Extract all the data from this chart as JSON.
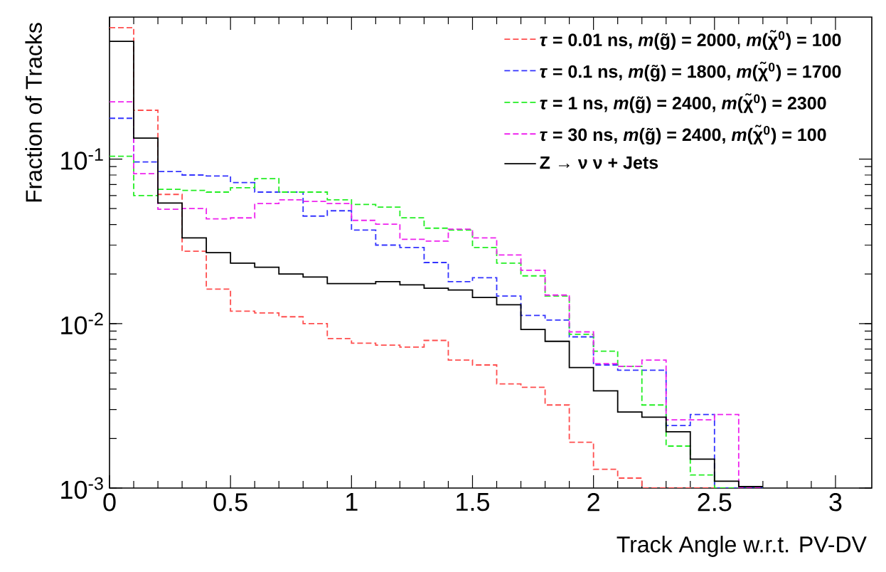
{
  "chart_data": {
    "type": "histogram",
    "xlabel": "Track Angle w.r.t. PV-DV",
    "ylabel": "Fraction of Tracks",
    "log": "y",
    "grid": false,
    "legend": "top right",
    "xlim": [
      0,
      3.15
    ],
    "ylim": [
      0.001,
      0.73
    ],
    "xticks": [
      0,
      0.5,
      1,
      1.5,
      2,
      2.5,
      3
    ],
    "yticks": [
      {
        "value": 0.001,
        "label": "10$^{-3}$"
      },
      {
        "value": 0.01,
        "label": "10$^{-2}$"
      },
      {
        "value": 0.1,
        "label": "10$^{-1}$"
      }
    ],
    "bins": [
      0,
      0.1,
      0.2,
      0.3,
      0.4,
      0.5,
      0.6,
      0.7,
      0.8,
      0.9,
      1.0,
      1.1,
      1.2,
      1.3,
      1.4,
      1.5,
      1.6,
      1.7,
      1.8,
      1.9,
      2.0,
      2.1,
      2.2,
      2.3,
      2.4,
      2.5,
      2.6,
      2.7
    ],
    "series": [
      {
        "name": "*τ* = 0.01 ns, *m*(g̃) = 2000, *m*(χ̃$^{0}$) = 100",
        "color": "#ff4d4d",
        "line_style": "dashed",
        "values": [
          0.63,
          0.198,
          0.061,
          0.0275,
          0.0162,
          0.0119,
          0.0116,
          0.011,
          0.01,
          0.0081,
          0.0076,
          0.0074,
          0.0072,
          0.0079,
          0.006,
          0.0056,
          0.0043,
          0.0041,
          0.0032,
          0.0019,
          0.0013,
          0.00115,
          null,
          null,
          null,
          null,
          null
        ]
      },
      {
        "name": "*τ* = 0.1 ns, *m*(g̃) = 1800, *m*(χ̃$^{0}$) = 1700",
        "color": "#3333ff",
        "line_style": "dashed",
        "values": [
          0.177,
          0.096,
          0.084,
          0.08,
          0.079,
          0.072,
          0.063,
          0.063,
          0.045,
          0.0485,
          0.037,
          0.03,
          0.029,
          0.0235,
          0.018,
          0.019,
          0.0147,
          0.0112,
          0.0105,
          0.0083,
          0.0056,
          0.0052,
          0.0052,
          0.0024,
          0.0028,
          null,
          null
        ]
      },
      {
        "name": "*τ* = 1 ns, *m*(g̃) = 2400, *m*(χ̃$^{0}$) = 2300",
        "color": "#22ee22",
        "line_style": "dashed",
        "values": [
          0.104,
          0.06,
          0.0655,
          0.0645,
          0.063,
          0.067,
          0.076,
          0.063,
          0.063,
          0.0565,
          0.053,
          0.051,
          0.044,
          0.038,
          0.037,
          0.029,
          0.0233,
          0.0195,
          0.0147,
          0.0086,
          0.0068,
          0.0055,
          0.0032,
          0.0018,
          0.0012,
          null,
          null
        ]
      },
      {
        "name": "*τ* = 30 ns, *m*(g̃) = 2400, *m*(χ̃$^{0}$) = 100",
        "color": "#ee22ee",
        "line_style": "dashed",
        "values": [
          0.223,
          0.0815,
          0.0495,
          0.05,
          0.0433,
          0.0439,
          0.0536,
          0.0565,
          0.0553,
          0.0536,
          0.0424,
          0.0402,
          0.0325,
          0.0317,
          0.0375,
          0.0332,
          0.0261,
          0.0211,
          0.0149,
          0.0089,
          0.0057,
          0.0055,
          0.006,
          0.0026,
          0.0026,
          0.0028,
          null
        ]
      },
      {
        "name": "Z → ν ν + Jets",
        "color": "#000000",
        "line_style": "solid",
        "values": [
          0.52,
          0.134,
          0.054,
          0.0332,
          0.027,
          0.0233,
          0.022,
          0.02,
          0.0192,
          0.0175,
          0.0175,
          0.018,
          0.0172,
          0.0164,
          0.016,
          0.0144,
          0.013,
          0.0092,
          0.0078,
          0.0054,
          0.0039,
          0.0029,
          0.0027,
          0.0022,
          0.0015,
          0.0011,
          0.00102
        ]
      }
    ]
  }
}
